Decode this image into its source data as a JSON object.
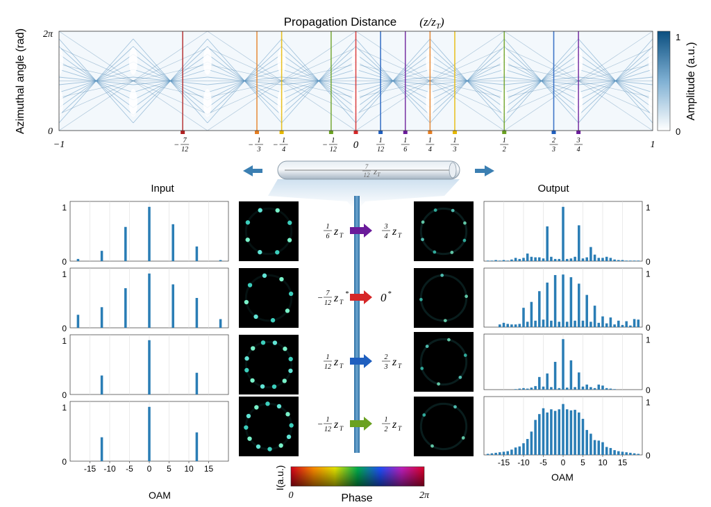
{
  "figure": {
    "top_title": "Propagation Distance",
    "top_title_math": "(z/z_T)",
    "y_axis_label": "Azimuthal angle (rad)",
    "y_ticks": [
      "2π",
      "0"
    ],
    "x_end_ticks": [
      "−1",
      "1"
    ],
    "colorbar": {
      "label": "Amplitude (a.u.)",
      "ticks": [
        "1",
        "0"
      ],
      "low_color": "#ffffff",
      "high_color": "#0b4f80"
    },
    "input_label": "Input",
    "output_label": "Output",
    "oam_label": "OAM",
    "fiber_label": "7/12 z_T",
    "intensity_label": "I(a.u.)",
    "phase_label": "Phase",
    "phase_ticks": [
      "0",
      "2π"
    ]
  },
  "chart_data": [
    {
      "type": "heatmap",
      "title": "Propagation Distance (z/z_T)",
      "xlabel": "Propagation Distance (z/z_T)",
      "ylabel": "Azimuthal angle (rad)",
      "xlim": [
        -1,
        1
      ],
      "ylim": [
        "0",
        "2π"
      ],
      "colorbar_label": "Amplitude (a.u.)",
      "colorbar_range": [
        0,
        1
      ],
      "marked_positions": [
        {
          "value": -0.5833,
          "label": "−7/12",
          "num": "7",
          "den": "12",
          "neg": true,
          "color": "#b22222"
        },
        {
          "value": -0.3333,
          "label": "−1/3",
          "num": "1",
          "den": "3",
          "neg": true,
          "color": "#e67e22"
        },
        {
          "value": -0.25,
          "label": "−1/4",
          "num": "1",
          "den": "4",
          "neg": true,
          "color": "#e6b800"
        },
        {
          "value": -0.0833,
          "label": "−1/12",
          "num": "1",
          "den": "12",
          "neg": true,
          "color": "#6aa121"
        },
        {
          "value": 0,
          "label": "0",
          "num": "",
          "den": "",
          "neg": false,
          "color": "#d62728"
        },
        {
          "value": 0.0833,
          "label": "1/12",
          "num": "1",
          "den": "12",
          "neg": false,
          "color": "#1f5fbf"
        },
        {
          "value": 0.1667,
          "label": "1/6",
          "num": "1",
          "den": "6",
          "neg": false,
          "color": "#6a1b9a"
        },
        {
          "value": 0.25,
          "label": "1/4",
          "num": "1",
          "den": "4",
          "neg": false,
          "color": "#e67e22"
        },
        {
          "value": 0.3333,
          "label": "1/3",
          "num": "1",
          "den": "3",
          "neg": false,
          "color": "#e6b800"
        },
        {
          "value": 0.5,
          "label": "1/2",
          "num": "1",
          "den": "2",
          "neg": false,
          "color": "#6aa121"
        },
        {
          "value": 0.6667,
          "label": "2/3",
          "num": "2",
          "den": "3",
          "neg": false,
          "color": "#1f5fbf"
        },
        {
          "value": 0.75,
          "label": "3/4",
          "num": "3",
          "den": "4",
          "neg": false,
          "color": "#6a1b9a"
        }
      ]
    },
    {
      "type": "bar",
      "title": "Input",
      "panel": 1,
      "xlabel": "",
      "ylabel": "",
      "xlim": [
        -20,
        20
      ],
      "ylim": [
        0,
        1.1
      ],
      "yticks": [
        0,
        1
      ],
      "x": [
        -18,
        -12,
        -6,
        0,
        6,
        12,
        18
      ],
      "values": [
        0.04,
        0.19,
        0.63,
        1.0,
        0.68,
        0.27,
        0.02
      ]
    },
    {
      "type": "bar",
      "title": "Input",
      "panel": 2,
      "xlabel": "",
      "ylabel": "",
      "xlim": [
        -20,
        20
      ],
      "ylim": [
        0,
        1.1
      ],
      "yticks": [
        0,
        1
      ],
      "x": [
        -18,
        -12,
        -6,
        0,
        6,
        12,
        18
      ],
      "values": [
        0.24,
        0.38,
        0.73,
        1.0,
        0.8,
        0.55,
        0.16
      ]
    },
    {
      "type": "bar",
      "title": "Input",
      "panel": 3,
      "xlabel": "",
      "ylabel": "",
      "xlim": [
        -20,
        20
      ],
      "ylim": [
        0,
        1.1
      ],
      "yticks": [
        0,
        1
      ],
      "x": [
        -12,
        0,
        12
      ],
      "values": [
        0.35,
        1.0,
        0.4
      ]
    },
    {
      "type": "bar",
      "title": "Input",
      "panel": 4,
      "xlabel": "OAM",
      "ylabel": "",
      "xlim": [
        -20,
        20
      ],
      "ylim": [
        0,
        1.1
      ],
      "yticks": [
        0,
        1
      ],
      "xticks": [
        -15,
        -10,
        -5,
        0,
        5,
        10,
        15
      ],
      "x": [
        -12,
        0,
        12
      ],
      "values": [
        0.44,
        1.0,
        0.53
      ]
    },
    {
      "type": "bar",
      "title": "Output",
      "panel": 1,
      "xlabel": "",
      "ylabel": "",
      "xlim": [
        -20,
        20
      ],
      "ylim": [
        0,
        1.1
      ],
      "yticks": [
        0,
        1
      ],
      "x": [
        -19,
        -18,
        -17,
        -16,
        -15,
        -14,
        -13,
        -12,
        -11,
        -10,
        -9,
        -8,
        -7,
        -6,
        -5,
        -4,
        -3,
        -2,
        -1,
        0,
        1,
        2,
        3,
        4,
        5,
        6,
        7,
        8,
        9,
        10,
        11,
        12,
        13,
        14,
        15,
        16,
        17,
        18,
        19
      ],
      "values": [
        0.01,
        0.01,
        0.02,
        0.01,
        0.02,
        0.01,
        0.03,
        0.06,
        0.04,
        0.06,
        0.14,
        0.08,
        0.07,
        0.07,
        0.05,
        0.64,
        0.08,
        0.04,
        0.04,
        1.0,
        0.04,
        0.05,
        0.08,
        0.66,
        0.05,
        0.07,
        0.26,
        0.12,
        0.06,
        0.06,
        0.08,
        0.06,
        0.03,
        0.02,
        0.02,
        0.01,
        0.01,
        0.01,
        0.01
      ]
    },
    {
      "type": "bar",
      "title": "Output",
      "panel": 2,
      "xlabel": "",
      "ylabel": "",
      "xlim": [
        -20,
        20
      ],
      "ylim": [
        0,
        1.1
      ],
      "yticks": [
        0,
        1
      ],
      "x": [
        -16,
        -15,
        -14,
        -13,
        -12,
        -11,
        -10,
        -9,
        -8,
        -7,
        -6,
        -5,
        -4,
        -3,
        -2,
        -1,
        0,
        1,
        2,
        3,
        4,
        5,
        6,
        7,
        8,
        9,
        10,
        11,
        12,
        13,
        14,
        15,
        16,
        17,
        18,
        19
      ],
      "values": [
        0.05,
        0.08,
        0.06,
        0.05,
        0.05,
        0.06,
        0.36,
        0.1,
        0.47,
        0.12,
        0.67,
        0.14,
        0.83,
        0.12,
        0.97,
        0.1,
        0.98,
        0.1,
        0.93,
        0.12,
        0.81,
        0.12,
        0.6,
        0.1,
        0.4,
        0.08,
        0.2,
        0.07,
        0.18,
        0.05,
        0.12,
        0.04,
        0.11,
        0.03,
        0.15,
        0.14
      ]
    },
    {
      "type": "bar",
      "title": "Output",
      "panel": 3,
      "xlabel": "",
      "ylabel": "",
      "xlim": [
        -20,
        20
      ],
      "ylim": [
        0,
        1.1
      ],
      "yticks": [
        0,
        1
      ],
      "x": [
        -12,
        -11,
        -10,
        -9,
        -8,
        -7,
        -6,
        -5,
        -4,
        -3,
        -2,
        -1,
        0,
        1,
        2,
        3,
        4,
        5,
        6,
        7,
        8,
        9,
        10,
        11,
        12,
        13
      ],
      "values": [
        0.01,
        0.02,
        0.03,
        0.02,
        0.04,
        0.07,
        0.25,
        0.06,
        0.32,
        0.05,
        0.55,
        0.03,
        1.0,
        0.04,
        0.58,
        0.05,
        0.34,
        0.06,
        0.1,
        0.05,
        0.03,
        0.1,
        0.08,
        0.03,
        0.02,
        0.01
      ]
    },
    {
      "type": "bar",
      "title": "Output",
      "panel": 4,
      "xlabel": "OAM",
      "ylabel": "",
      "xlim": [
        -20,
        20
      ],
      "ylim": [
        0,
        1.1
      ],
      "yticks": [
        0,
        1
      ],
      "xticks": [
        -15,
        -10,
        -5,
        0,
        5,
        10,
        15
      ],
      "x": [
        -19,
        -18,
        -17,
        -16,
        -15,
        -14,
        -13,
        -12,
        -11,
        -10,
        -9,
        -8,
        -7,
        -6,
        -5,
        -4,
        -3,
        -2,
        -1,
        0,
        1,
        2,
        3,
        4,
        5,
        6,
        7,
        8,
        9,
        10,
        11,
        12,
        13,
        14,
        15,
        16,
        17,
        18,
        19
      ],
      "values": [
        0.02,
        0.03,
        0.04,
        0.05,
        0.06,
        0.07,
        0.1,
        0.14,
        0.16,
        0.22,
        0.3,
        0.44,
        0.66,
        0.77,
        0.88,
        0.8,
        0.86,
        0.83,
        0.86,
        0.96,
        0.86,
        0.84,
        0.85,
        0.8,
        0.68,
        0.47,
        0.4,
        0.28,
        0.27,
        0.24,
        0.15,
        0.13,
        0.09,
        0.07,
        0.06,
        0.05,
        0.04,
        0.03,
        0.02
      ]
    }
  ],
  "transitions": [
    {
      "from_num": "1",
      "from_den": "6",
      "from_neg": false,
      "from_star": false,
      "to_num": "3",
      "to_den": "4",
      "to_zero": false,
      "to_star": false,
      "arrow_color": "#6a1b9a"
    },
    {
      "from_num": "7",
      "from_den": "12",
      "from_neg": true,
      "from_star": true,
      "to_num": "",
      "to_den": "",
      "to_zero": true,
      "to_star": true,
      "arrow_color": "#d62728"
    },
    {
      "from_num": "1",
      "from_den": "12",
      "from_neg": false,
      "from_star": false,
      "to_num": "2",
      "to_den": "3",
      "to_zero": false,
      "to_star": false,
      "arrow_color": "#1f5fbf"
    },
    {
      "from_num": "1",
      "from_den": "12",
      "from_neg": true,
      "from_star": false,
      "to_num": "1",
      "to_den": "2",
      "to_zero": false,
      "to_star": false,
      "arrow_color": "#6aa121"
    }
  ],
  "beam_images": {
    "input_lobes": [
      8,
      8,
      12,
      12
    ],
    "output_lobes": [
      8,
      4,
      6,
      4
    ]
  }
}
